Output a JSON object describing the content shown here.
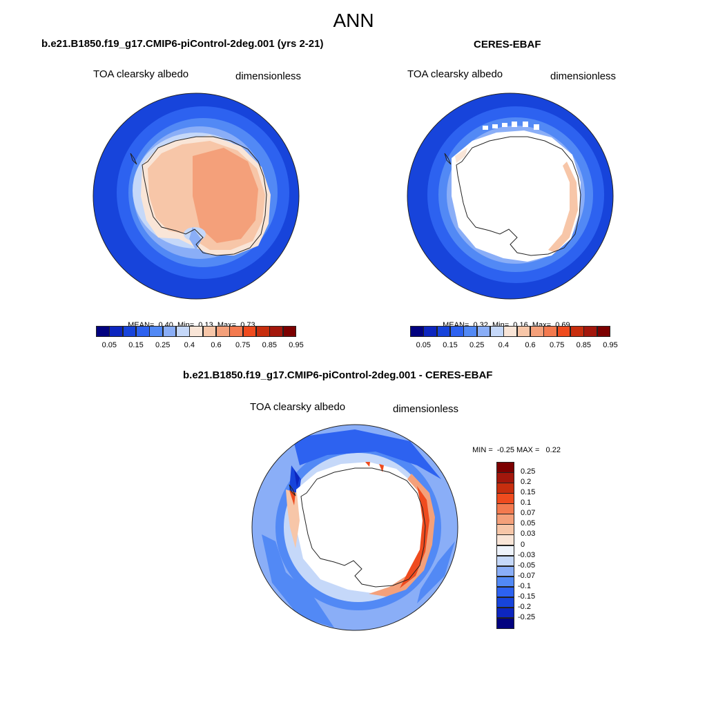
{
  "page_title": "ANN",
  "panels": [
    {
      "case_title": "b.e21.B1850.f19_g17.CMIP6-piControl-2deg.001 (yrs 2-21)",
      "variable": "TOA clearsky albedo",
      "units": "dimensionless",
      "stats": {
        "mean_label": "MEAN=",
        "mean": "0.40",
        "min_label": "Min=",
        "min": "0.13",
        "max_label": "Max=",
        "max": "0.73"
      }
    },
    {
      "case_title": "CERES-EBAF",
      "variable": "TOA clearsky albedo",
      "units": "dimensionless",
      "stats": {
        "mean_label": "MEAN=",
        "mean": "0.32",
        "min_label": "Min=",
        "min": "0.16",
        "max_label": "Max=",
        "max": "0.69"
      }
    },
    {
      "case_title": "b.e21.B1850.f19_g17.CMIP6-piControl-2deg.001 - CERES-EBAF",
      "variable": "TOA clearsky albedo",
      "units": "dimensionless",
      "minmax": {
        "min_label": "MIN =",
        "min": "-0.25",
        "max_label": "MAX =",
        "max": "0.22"
      }
    }
  ],
  "colorbars": {
    "field": {
      "colors": [
        "#02027f",
        "#0d26bf",
        "#1744db",
        "#2d62f0",
        "#5289f5",
        "#8aaef7",
        "#c5d8f9",
        "#f9e5d7",
        "#f7c6a8",
        "#f4a07a",
        "#f37a4f",
        "#ef4b1e",
        "#c72e0e",
        "#a3170c",
        "#7c0000"
      ],
      "labels": [
        "0.05",
        "0.15",
        "0.25",
        "0.4",
        "0.6",
        "0.75",
        "0.85",
        "0.95"
      ]
    },
    "diff": {
      "colors": [
        "#7c0000",
        "#a3170c",
        "#c72e0e",
        "#ef4b1e",
        "#f37a4f",
        "#f4a07a",
        "#f7c6a8",
        "#f9e5d7",
        "#eef3fb",
        "#c5d8f9",
        "#8aaef7",
        "#5289f5",
        "#2d62f0",
        "#1744db",
        "#0d26bf",
        "#02027f"
      ],
      "labels": [
        "0.25",
        "0.2",
        "0.15",
        "0.1",
        "0.07",
        "0.05",
        "0.03",
        "0",
        "-0.03",
        "-0.05",
        "-0.07",
        "-0.1",
        "-0.15",
        "-0.2",
        "-0.25"
      ]
    }
  },
  "chart_data": [
    {
      "type": "heatmap",
      "title": "b.e21.B1850.f19_g17.CMIP6-piControl-2deg.001 (yrs 2-21)",
      "projection": "south polar stereographic",
      "variable": "TOA clearsky albedo",
      "units": "dimensionless",
      "mean": 0.4,
      "min": 0.13,
      "max": 0.73,
      "contour_levels": [
        0.05,
        0.1,
        0.15,
        0.2,
        0.25,
        0.3,
        0.4,
        0.5,
        0.6,
        0.7,
        0.75,
        0.8,
        0.85,
        0.9,
        0.95
      ]
    },
    {
      "type": "heatmap",
      "title": "CERES-EBAF",
      "projection": "south polar stereographic",
      "variable": "TOA clearsky albedo",
      "units": "dimensionless",
      "mean": 0.32,
      "min": 0.16,
      "max": 0.69,
      "contour_levels": [
        0.05,
        0.1,
        0.15,
        0.2,
        0.25,
        0.3,
        0.4,
        0.5,
        0.6,
        0.7,
        0.75,
        0.8,
        0.85,
        0.9,
        0.95
      ]
    },
    {
      "type": "heatmap",
      "title": "b.e21.B1850.f19_g17.CMIP6-piControl-2deg.001 - CERES-EBAF",
      "projection": "south polar stereographic",
      "variable": "TOA clearsky albedo",
      "units": "dimensionless",
      "min": -0.25,
      "max": 0.22,
      "contour_levels": [
        -0.25,
        -0.2,
        -0.15,
        -0.1,
        -0.07,
        -0.05,
        -0.03,
        0,
        0.03,
        0.05,
        0.07,
        0.1,
        0.15,
        0.2,
        0.25
      ]
    }
  ]
}
